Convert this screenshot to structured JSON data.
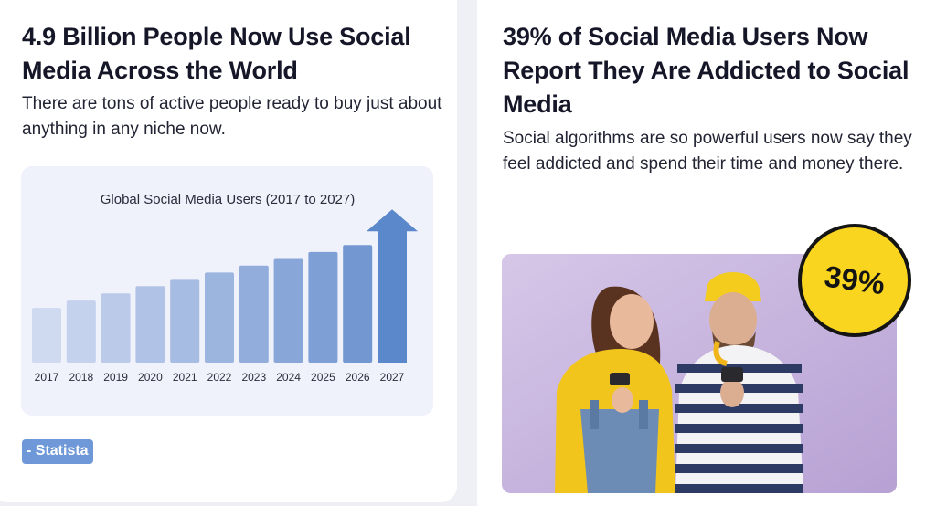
{
  "left_card": {
    "title": "4.9 Billion People Now Use Social Media Across the World",
    "description": "There are tons of active people ready to buy just about anything in any niche now.",
    "source": "- Statista"
  },
  "right_card": {
    "title": "39% of Social Media Users Now Report They Are Addicted to Social Media",
    "description": "Social algorithms are so powerful users now say they feel addicted and spend their time and money there.",
    "badge": "39%",
    "photo_icon": "two-people-looking-at-phones-photo"
  },
  "chart_data": {
    "type": "bar",
    "title": "Global Social Media Users (2017 to 2027)",
    "xlabel": "",
    "ylabel": "",
    "categories": [
      "2017",
      "2018",
      "2019",
      "2020",
      "2021",
      "2022",
      "2023",
      "2024",
      "2025",
      "2026",
      "2027"
    ],
    "values": [
      2.73,
      2.96,
      3.19,
      3.42,
      3.62,
      3.85,
      4.07,
      4.28,
      4.5,
      4.72,
      5.85
    ],
    "ylim": [
      1.0,
      6.0
    ],
    "final_bar_style": "up-arrow",
    "colors": {
      "bar_start": "#cfd9f0",
      "bar_end": "#6990ce",
      "arrow": "#5b87cb",
      "background": "#eff1fb"
    }
  }
}
